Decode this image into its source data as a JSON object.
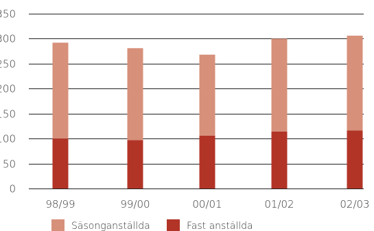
{
  "chart_data": {
    "type": "bar",
    "stacked": true,
    "categories": [
      "98/99",
      "99/00",
      "00/01",
      "01/02",
      "02/03"
    ],
    "series": [
      {
        "name": "Fast anställda",
        "values": [
          100,
          97,
          106,
          114,
          116
        ],
        "color": "#b23427"
      },
      {
        "name": "Säsonganställda",
        "values": [
          192,
          184,
          162,
          186,
          190
        ],
        "color": "#d7907a"
      }
    ],
    "ylim": [
      0,
      350
    ],
    "yticks": [
      0,
      50,
      100,
      150,
      200,
      250,
      300,
      350
    ],
    "grid": true,
    "legend_position": "bottom"
  }
}
